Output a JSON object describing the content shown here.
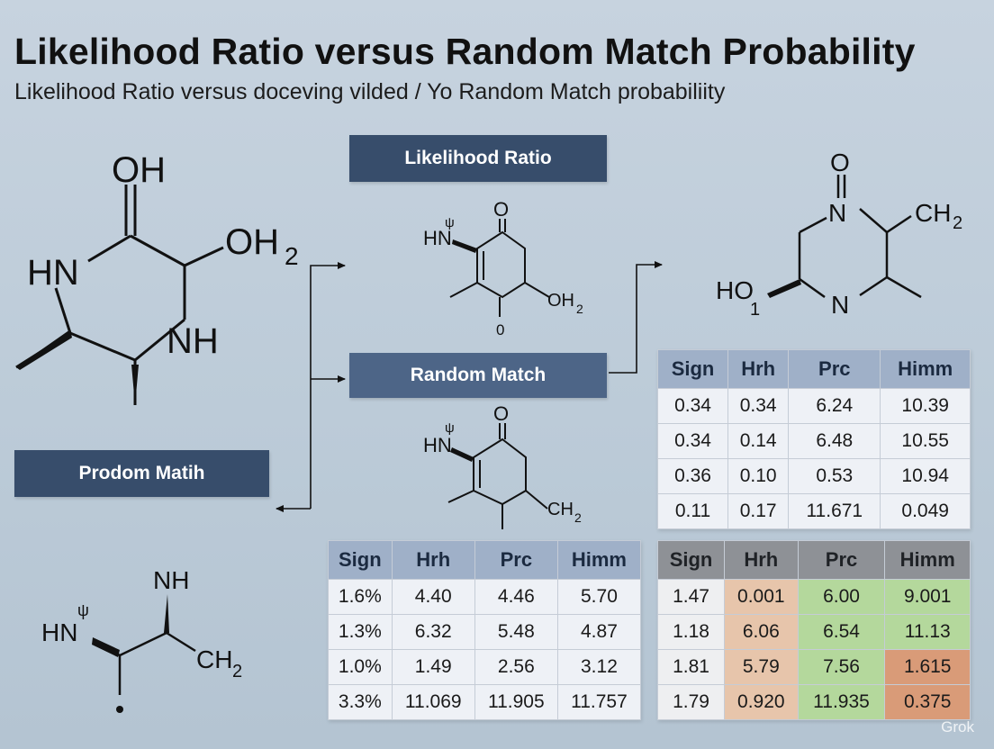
{
  "header": {
    "title": "Likelihood Ratio versus Random Match Probability",
    "subtitle": "Likelihood Ratio versus  doceving vilded /  Yo Random Match probabiliity"
  },
  "labels": {
    "likelihood_ratio": "Likelihood Ratio",
    "random_match": "Random Match",
    "prodom_match": "Prodom Matih"
  },
  "molecules": {
    "left_large": {
      "oh_top": "OH",
      "oh2": "OH",
      "oh2_sub": "2",
      "hn": "HN",
      "nh": "NH"
    },
    "center_top": {
      "o_top": "O",
      "hn": "HN",
      "oh2": "OH",
      "oh2_sub": "2",
      "zero": "0",
      "mark": "ψ"
    },
    "center_bottom": {
      "o_top": "O",
      "hn": "HN",
      "ch2": "CH",
      "ch2_sub": "2",
      "mark": "ψ"
    },
    "right_top": {
      "o_top": "O",
      "n_top": "N",
      "ch2": "CH",
      "ch2_sub": "2",
      "ho": "HO",
      "ho_sub": "1",
      "n_bot": "N"
    },
    "left_bottom": {
      "nh": "NH",
      "hn": "HN",
      "ch2": "CH",
      "ch2_sub": "2",
      "mark": "ψ"
    }
  },
  "tables": {
    "right_top": {
      "headers": [
        "Sign",
        "Hrh",
        "Prc",
        "Himm"
      ],
      "rows": [
        [
          "0.34",
          "0.34",
          "6.24",
          "10.39"
        ],
        [
          "0.34",
          "0.14",
          "6.48",
          "10.55"
        ],
        [
          "0.36",
          "0.10",
          "0.53",
          "10.94"
        ],
        [
          "0.11",
          "0.17",
          "11.671",
          "0.049"
        ]
      ]
    },
    "center_bottom": {
      "headers": [
        "Sign",
        "Hrh",
        "Prc",
        "Himm"
      ],
      "rows": [
        [
          "1.6%",
          "4.40",
          "4.46",
          "5.70"
        ],
        [
          "1.3%",
          "6.32",
          "5.48",
          "4.87"
        ],
        [
          "1.0%",
          "1.49",
          "2.56",
          "3.12"
        ],
        [
          "3.3%",
          "11.069",
          "11.905",
          "11.757"
        ]
      ]
    },
    "right_bottom": {
      "headers": [
        "Sign",
        "Hrh",
        "Prc",
        "Himm"
      ],
      "rows": [
        [
          "1.47",
          "0.001",
          "6.00",
          "9.001"
        ],
        [
          "1.18",
          "6.06",
          "6.54",
          "11.13"
        ],
        [
          "1.81",
          "5.79",
          "7.56",
          "1.615"
        ],
        [
          "1.79",
          "0.920",
          "11.935",
          "0.375"
        ]
      ],
      "cell_colors": [
        [
          "none",
          "peach",
          "green",
          "green"
        ],
        [
          "none",
          "peach",
          "green",
          "green"
        ],
        [
          "none",
          "peach",
          "green",
          "salmon"
        ],
        [
          "none",
          "peach",
          "green",
          "salmon"
        ]
      ]
    }
  },
  "colors": {
    "label_box": "#374d6b",
    "table_header_blue": "#9fb0c8",
    "table_header_gray": "#8e9196",
    "cell_peach": "#e7c5ab",
    "cell_green": "#b4d89c",
    "cell_salmon": "#d99b78"
  },
  "watermark": "Grok"
}
